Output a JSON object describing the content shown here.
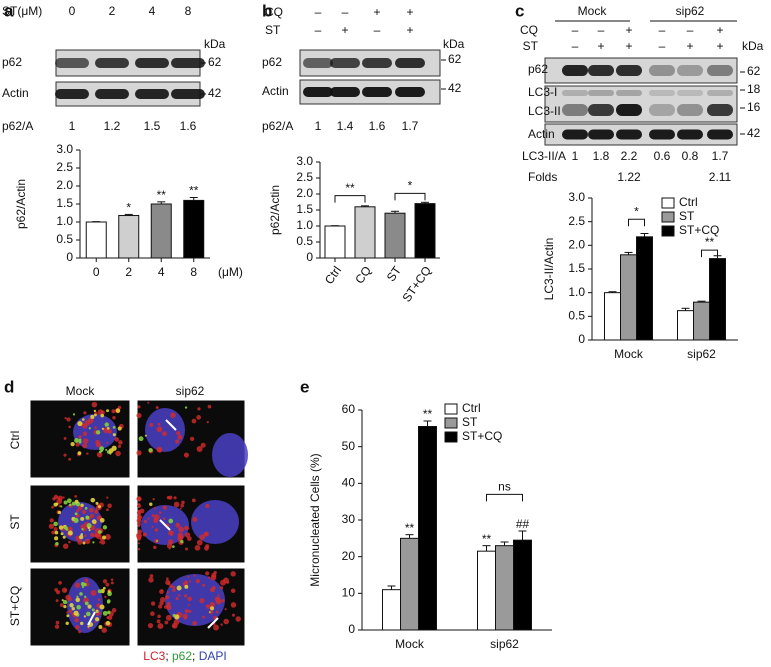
{
  "figure": {
    "panel_labels": [
      "a",
      "b",
      "c",
      "d",
      "e"
    ],
    "blot_a": {
      "treatment_label": "ST(μM)",
      "doses": [
        0,
        2,
        4,
        8
      ],
      "kda_label": "kDa",
      "rows": [
        {
          "label": "p62",
          "kda": 62
        },
        {
          "label": "Actin",
          "kda": 42
        }
      ],
      "ratio_label": "p62/A",
      "ratios": [
        1,
        1.2,
        1.5,
        1.6
      ]
    },
    "blot_b": {
      "treatments": [
        {
          "label": "CQ",
          "signs": [
            "–",
            "–",
            "+",
            "+"
          ]
        },
        {
          "label": "ST",
          "signs": [
            "–",
            "+",
            "–",
            "+"
          ]
        }
      ],
      "kda_label": "kDa",
      "rows": [
        {
          "label": "p62",
          "kda": 62
        },
        {
          "label": "Actin",
          "kda": 42
        }
      ],
      "ratio_label": "p62/A",
      "ratios": [
        1,
        1.4,
        1.6,
        1.7
      ]
    },
    "blot_c": {
      "groups": [
        "Mock",
        "sip62"
      ],
      "treatments": [
        {
          "label": "CQ",
          "signs": [
            "–",
            "–",
            "+",
            "–",
            "–",
            "+"
          ]
        },
        {
          "label": "ST",
          "signs": [
            "–",
            "+",
            "+",
            "–",
            "+",
            "+"
          ]
        }
      ],
      "kda_label": "kDa",
      "rows": [
        {
          "label": "p62",
          "kda": 62
        },
        {
          "label": "LC3-I",
          "kda": 18
        },
        {
          "label": "LC3-II",
          "kda": 16
        },
        {
          "label": "Actin",
          "kda": 42
        }
      ],
      "ratio_label": "LC3-II/A",
      "ratios": [
        1,
        1.8,
        2.2,
        0.6,
        0.8,
        1.7
      ],
      "folds_label": "Folds",
      "folds": [
        1.22,
        2.11
      ]
    },
    "images_d": {
      "columns": [
        "Mock",
        "sip62"
      ],
      "rows": [
        "Ctrl",
        "ST",
        "ST+CQ"
      ],
      "stain_labels": [
        "LC3",
        "p62",
        "DAPI"
      ],
      "stain_colors": [
        "#d0202a",
        "#2e9a3a",
        "#2f3fb0"
      ],
      "separator": "; "
    }
  },
  "chart_data": [
    {
      "type": "bar",
      "categories": [
        "0",
        "2",
        "4",
        "8"
      ],
      "x_label": "(μM)",
      "y_label": "p62/Actin",
      "values": [
        1.0,
        1.18,
        1.5,
        1.6
      ],
      "errors": [
        0.01,
        0.03,
        0.06,
        0.08
      ],
      "colors": [
        "#ffffff",
        "#cfcfcf",
        "#8a8a8a",
        "#000000"
      ],
      "value_annotations": [
        null,
        "*",
        "**",
        "**"
      ],
      "ylim": [
        0,
        3
      ],
      "yticks": [
        0,
        0.5,
        {
          "value": 1,
          "label": "1.0"
        },
        1.5,
        {
          "value": 2,
          "label": "2.0"
        },
        2.5,
        {
          "value": 3,
          "label": "3.0"
        }
      ]
    },
    {
      "type": "bar",
      "categories": [
        "Ctrl",
        "CQ",
        "ST",
        "ST+CQ"
      ],
      "y_label": "p62/Actin",
      "values": [
        1.0,
        1.6,
        1.4,
        1.7
      ],
      "errors": [
        0.01,
        0.03,
        0.06,
        0.04
      ],
      "colors": [
        "#ffffff",
        "#cfcfcf",
        "#8a8a8a",
        "#000000"
      ],
      "brackets": [
        "**",
        "*"
      ],
      "ylim": [
        0,
        3
      ],
      "yticks": [
        0,
        0.5,
        {
          "value": 1,
          "label": "1.0"
        },
        1.5,
        {
          "value": 2,
          "label": "2.0"
        },
        2.5,
        {
          "value": 3,
          "label": "3.0"
        }
      ]
    },
    {
      "type": "grouped_bar",
      "categories": [
        "Mock",
        "sip62"
      ],
      "y_label": "LC3-II/Actin",
      "series": [
        {
          "name": "Ctrl",
          "color": "#ffffff",
          "values": [
            1.0,
            0.62
          ],
          "errors": [
            0.02,
            0.05
          ]
        },
        {
          "name": "ST",
          "color": "#9a9a9a",
          "values": [
            1.8,
            0.8
          ],
          "errors": [
            0.05,
            0.02
          ]
        },
        {
          "name": "ST+CQ",
          "color": "#000000",
          "values": [
            2.18,
            1.72
          ],
          "errors": [
            0.07,
            0.06
          ]
        }
      ],
      "brackets": [
        "*",
        "**"
      ],
      "ylim": [
        0,
        3
      ],
      "yticks": [
        0,
        0.5,
        {
          "value": 1,
          "label": "1.0"
        },
        1.5,
        {
          "value": 2,
          "label": "2.0"
        },
        2.5,
        {
          "value": 3,
          "label": "3.0"
        }
      ]
    },
    {
      "type": "grouped_bar",
      "categories": [
        "Mock",
        "sip62"
      ],
      "y_label": "Micronucleated Cells (%)",
      "series": [
        {
          "name": "Ctrl",
          "color": "#ffffff",
          "values": [
            11,
            21.5
          ],
          "errors": [
            1,
            1.5
          ],
          "value_annotations": [
            null,
            "**"
          ]
        },
        {
          "name": "ST",
          "color": "#9a9a9a",
          "values": [
            25,
            23
          ],
          "errors": [
            1,
            1
          ],
          "value_annotations": [
            "**",
            null
          ]
        },
        {
          "name": "ST+CQ",
          "color": "#000000",
          "values": [
            55.5,
            24.5
          ],
          "errors": [
            1.5,
            2.5
          ],
          "value_annotations": [
            "**",
            "##"
          ]
        }
      ],
      "brackets": [
        "ns"
      ],
      "ylim": [
        0,
        60
      ],
      "yticks": [
        0,
        10,
        20,
        30,
        40,
        50,
        60
      ]
    }
  ]
}
